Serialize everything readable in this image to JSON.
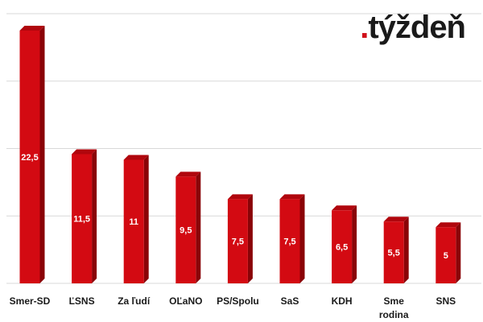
{
  "brand": {
    "dot": ".",
    "name": "týždeň"
  },
  "chart_data": {
    "type": "bar",
    "categories": [
      "Smer-SD",
      "ĽSNS",
      "Za ľudí",
      "OĽaNO",
      "PS/Spolu",
      "SaS",
      "KDH",
      "Sme rodina",
      "SNS"
    ],
    "values": [
      22.5,
      11.5,
      11,
      9.5,
      7.5,
      7.5,
      6.5,
      5.5,
      5
    ],
    "data_labels": [
      "22,5",
      "11,5",
      "11",
      "9,5",
      "7,5",
      "7,5",
      "6,5",
      "5,5",
      "5"
    ],
    "ylim": [
      0,
      24
    ],
    "grid": true,
    "colors": {
      "bar": "#d30a12",
      "bar_side": "#8a0307",
      "bar_top": "#b0060d",
      "grid": "#d9d9d9"
    }
  }
}
